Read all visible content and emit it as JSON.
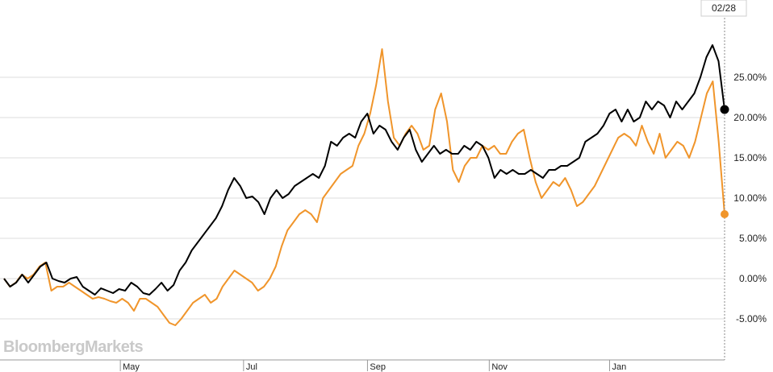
{
  "watermark": "BloombergMarkets",
  "end_marker_label": "02/28",
  "chart_data": {
    "type": "line",
    "title": "",
    "xlabel": "",
    "ylabel": "",
    "ylim": [
      -10,
      30
    ],
    "grid": true,
    "y_ticks": [
      25,
      20,
      15,
      10,
      5,
      0,
      -5
    ],
    "y_tick_labels": [
      "25.00%",
      "20.00%",
      "15.00%",
      "10.00%",
      "5.00%",
      "0.00%",
      "-5.00%"
    ],
    "x_tick_labels": [
      "May",
      "Jul",
      "Sep",
      "Nov",
      "Jan"
    ],
    "x_tick_positions": [
      0.167,
      0.338,
      0.51,
      0.679,
      0.846
    ],
    "colors": {
      "series1": "#000000",
      "series2": "#f0952b",
      "grid": "#dddddd"
    },
    "series": [
      {
        "values": [
          0,
          -1,
          -0.5,
          0.5,
          -0.5,
          0.5,
          1.5,
          2,
          0,
          -0.3,
          -0.5,
          0,
          0.2,
          -1,
          -1.5,
          -2,
          -1.2,
          -1.5,
          -1.8,
          -1.3,
          -1.5,
          -0.5,
          -1,
          -1.8,
          -2,
          -1.3,
          -0.5,
          -1.5,
          -0.8,
          1,
          2,
          3.5,
          4.5,
          5.5,
          6.5,
          7.5,
          9,
          11,
          12.5,
          11.5,
          10,
          10.2,
          9.5,
          8,
          10,
          11,
          10,
          10.5,
          11.5,
          12,
          12.5,
          13,
          12.5,
          14,
          17,
          16.5,
          17.5,
          18,
          17.5,
          19.5,
          20.5,
          18,
          19,
          18.5,
          17,
          16,
          17.5,
          18.5,
          16,
          14.5,
          15.5,
          16.5,
          15.5,
          16,
          15.5,
          15.5,
          16.5,
          16,
          17,
          16.5,
          15,
          12.5,
          13.5,
          13,
          13.5,
          13,
          13,
          13.5,
          13,
          12.5,
          13.5,
          13.5,
          14,
          14,
          14.5,
          15,
          17,
          17.5,
          18,
          19,
          20.5,
          21,
          19.5,
          21,
          19.5,
          20,
          22,
          21,
          22,
          21.5,
          20,
          22,
          21,
          22,
          23,
          25,
          27.5,
          29,
          27,
          21
        ]
      },
      {
        "values": [
          0,
          -1,
          -0.5,
          0.5,
          0,
          0.5,
          1.5,
          2,
          -1.5,
          -1,
          -1,
          -0.5,
          -1,
          -1.5,
          -2,
          -2.5,
          -2.3,
          -2.5,
          -2.8,
          -3,
          -2.5,
          -3,
          -4,
          -2.5,
          -2.5,
          -3,
          -3.5,
          -4.5,
          -5.5,
          -5.8,
          -5,
          -4,
          -3,
          -2.5,
          -2,
          -3,
          -2.5,
          -1,
          0,
          1,
          0.5,
          0,
          -0.5,
          -1.5,
          -1,
          0,
          1.5,
          4,
          6,
          7,
          8,
          8.5,
          8,
          7,
          10,
          11,
          12,
          13,
          13.5,
          14,
          16.5,
          18,
          20.5,
          24,
          28.5,
          22,
          17.5,
          16.5,
          18,
          19,
          18,
          16,
          16.5,
          21,
          23,
          19.5,
          13.5,
          12,
          14,
          15,
          15,
          16.5,
          16,
          16.5,
          15.5,
          15.5,
          17,
          18,
          18.5,
          15,
          12,
          10,
          11,
          12,
          11.5,
          12.5,
          11,
          9,
          9.5,
          10.5,
          11.5,
          13,
          14.5,
          16,
          17.5,
          18,
          17.5,
          16.5,
          19,
          17,
          15.5,
          18,
          15,
          16,
          17,
          16.5,
          15,
          17,
          20,
          23,
          24.5,
          17,
          8
        ]
      }
    ]
  }
}
